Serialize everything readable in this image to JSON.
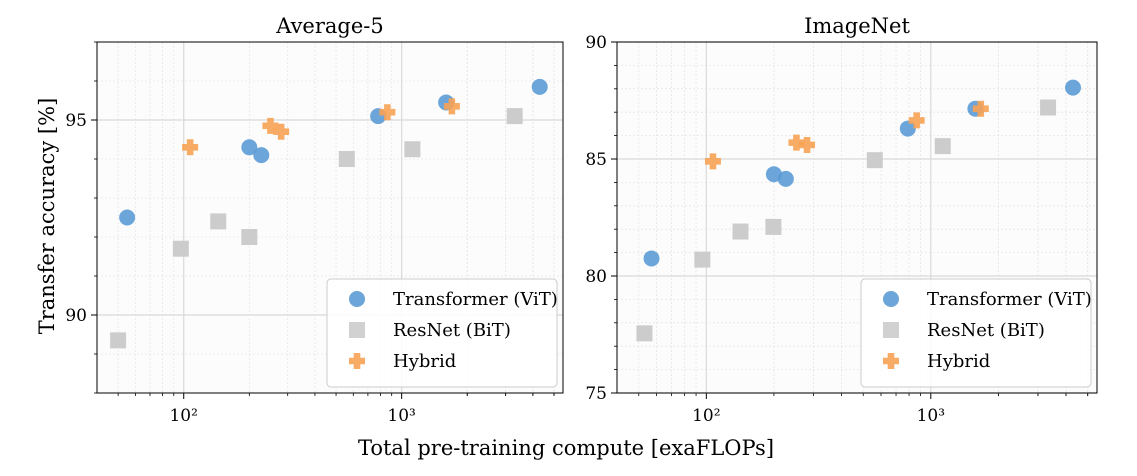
{
  "figure": {
    "xlabel": "Total pre-training compute [exaFLOPs]",
    "ylabel": "Transfer accuracy [%]"
  },
  "legend": {
    "entries": [
      "Transformer (ViT)",
      "ResNet (BiT)",
      "Hybrid"
    ]
  },
  "colors": {
    "vit": "#5b9bd5",
    "bit": "#cccccc",
    "hybrid": "#f7a253"
  },
  "chart_data": [
    {
      "type": "scatter",
      "title": "Average-5",
      "xlabel": "Total pre-training compute [exaFLOPs]",
      "ylabel": "Transfer accuracy [%]",
      "xscale": "log",
      "xlim": [
        40,
        5500
      ],
      "ylim": [
        88,
        97
      ],
      "xticks": [
        {
          "value": 100,
          "label": "10²"
        },
        {
          "value": 1000,
          "label": "10³"
        }
      ],
      "yticks": [
        90,
        95
      ],
      "grid": true,
      "legend_position": "lower-right",
      "series": [
        {
          "name": "Transformer (ViT)",
          "marker": "circle",
          "points": [
            [
              55,
              92.5
            ],
            [
              200,
              94.3
            ],
            [
              227,
              94.1
            ],
            [
              780,
              95.1
            ],
            [
              1600,
              95.45
            ],
            [
              4300,
              95.85
            ]
          ]
        },
        {
          "name": "ResNet (BiT)",
          "marker": "square",
          "points": [
            [
              50,
              89.35
            ],
            [
              97,
              91.7
            ],
            [
              144,
              92.4
            ],
            [
              200,
              92.0
            ],
            [
              560,
              94.0
            ],
            [
              1120,
              94.25
            ],
            [
              3300,
              95.1
            ]
          ]
        },
        {
          "name": "Hybrid",
          "marker": "plus",
          "points": [
            [
              107,
              94.3
            ],
            [
              250,
              94.85
            ],
            [
              280,
              94.7
            ],
            [
              860,
              95.2
            ],
            [
              1700,
              95.35
            ]
          ]
        }
      ]
    },
    {
      "type": "scatter",
      "title": "ImageNet",
      "xlabel": "Total pre-training compute [exaFLOPs]",
      "ylabel": "",
      "xscale": "log",
      "xlim": [
        40,
        5500
      ],
      "ylim": [
        75,
        90
      ],
      "xticks": [
        {
          "value": 100,
          "label": "10²"
        },
        {
          "value": 1000,
          "label": "10³"
        }
      ],
      "yticks": [
        75,
        80,
        85,
        90
      ],
      "grid": true,
      "legend_position": "lower-right",
      "series": [
        {
          "name": "Transformer (ViT)",
          "marker": "circle",
          "points": [
            [
              57,
              80.75
            ],
            [
              200,
              84.35
            ],
            [
              226,
              84.15
            ],
            [
              790,
              86.3
            ],
            [
              1580,
              87.15
            ],
            [
              4300,
              88.05
            ]
          ]
        },
        {
          "name": "ResNet (BiT)",
          "marker": "square",
          "points": [
            [
              53,
              77.55
            ],
            [
              96,
              80.7
            ],
            [
              142,
              81.9
            ],
            [
              199,
              82.1
            ],
            [
              563,
              84.95
            ],
            [
              1130,
              85.55
            ],
            [
              3330,
              87.2
            ]
          ]
        },
        {
          "name": "Hybrid",
          "marker": "plus",
          "points": [
            [
              107,
              84.9
            ],
            [
              252,
              85.7
            ],
            [
              281,
              85.6
            ],
            [
              865,
              86.65
            ],
            [
              1670,
              87.15
            ]
          ]
        }
      ]
    }
  ]
}
